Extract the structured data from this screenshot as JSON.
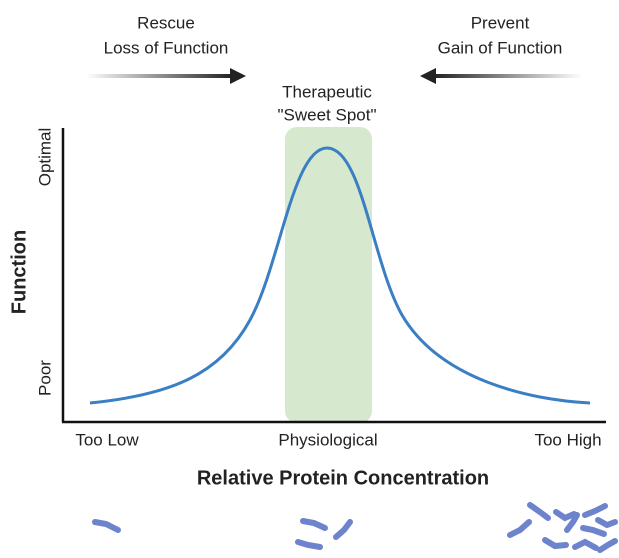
{
  "left_note": {
    "lines": [
      "Rescue",
      "Loss of Function"
    ]
  },
  "right_note": {
    "lines": [
      "Prevent",
      "Gain of Function"
    ]
  },
  "sweet_spot": {
    "lines": [
      "Therapeutic",
      "\"Sweet Spot\""
    ]
  },
  "y_axis": {
    "title": "Function",
    "top_label": "Optimal",
    "bottom_label": "Poor"
  },
  "x_axis": {
    "title": "Relative Protein Concentration",
    "labels": [
      "Too Low",
      "Physiological",
      "Too High"
    ]
  }
}
